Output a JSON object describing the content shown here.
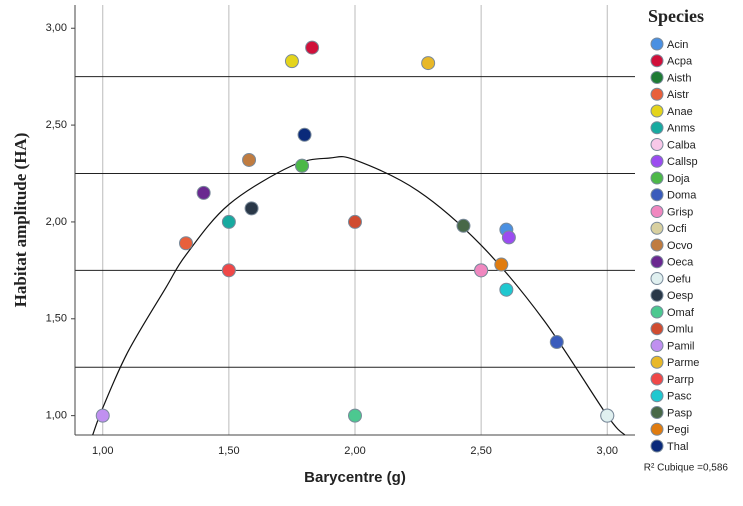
{
  "chart_data": {
    "type": "scatter",
    "x_label": "Barycentre (g)",
    "y_label": "Habitat amplitude (HA)",
    "legend_title": "Species",
    "legend": "right",
    "fit_label": "R² Cubique =0,586",
    "xlim": [
      0.89,
      3.11
    ],
    "ylim": [
      0.9,
      3.12
    ],
    "xticks": [
      {
        "value": 1,
        "label": "1,00"
      },
      {
        "value": 1.5,
        "label": "1,50"
      },
      {
        "value": 2,
        "label": "2,00"
      },
      {
        "value": 2.5,
        "label": "2,50"
      },
      {
        "value": 3,
        "label": "3,00"
      }
    ],
    "yticks": [
      {
        "value": 1,
        "label": "1,00"
      },
      {
        "value": 1.5,
        "label": "1,50"
      },
      {
        "value": 2,
        "label": "2,00"
      },
      {
        "value": 2.5,
        "label": "2,50"
      },
      {
        "value": 3,
        "label": "3,00"
      }
    ],
    "grid": "x",
    "hlines": [
      2.75,
      2.25,
      1.75,
      1.25
    ],
    "fit": {
      "x": [
        0.96,
        1.0,
        1.1,
        1.25,
        1.33,
        1.5,
        1.75,
        1.9,
        2.0,
        2.25,
        2.5,
        2.75,
        3.0,
        3.07
      ],
      "y": [
        0.9,
        1.04,
        1.33,
        1.66,
        1.83,
        2.09,
        2.29,
        2.33,
        2.32,
        2.16,
        1.88,
        1.49,
        1.0,
        0.9
      ]
    },
    "series": [
      {
        "name": "Acin",
        "color": "#4a90e2",
        "x": [
          2.6
        ],
        "values": [
          1.96
        ]
      },
      {
        "name": "Acpa",
        "color": "#d0103a",
        "x": [
          1.83
        ],
        "values": [
          2.9
        ]
      },
      {
        "name": "Aisth",
        "color": "#1e7b34",
        "x": [
          1.79
        ],
        "values": [
          2.29
        ]
      },
      {
        "name": "Aistr",
        "color": "#e8603c",
        "x": [
          1.33
        ],
        "values": [
          1.89
        ]
      },
      {
        "name": "Anae",
        "color": "#e4d41c",
        "x": [
          1.75
        ],
        "values": [
          2.83
        ]
      },
      {
        "name": "Anms",
        "color": "#17aaa0",
        "x": [
          1.5
        ],
        "values": [
          2.0
        ]
      },
      {
        "name": "Calba",
        "color": "#f8c8e8",
        "x": [
          2.5
        ],
        "values": [
          1.75
        ]
      },
      {
        "name": "Callsp",
        "color": "#9b4cf0",
        "x": [
          2.61
        ],
        "values": [
          1.92
        ]
      },
      {
        "name": "Doja",
        "color": "#4cb848",
        "x": [
          1.79
        ],
        "values": [
          2.29
        ]
      },
      {
        "name": "Doma",
        "color": "#3a5cbc",
        "x": [
          2.8
        ],
        "values": [
          1.38
        ]
      },
      {
        "name": "Grisp",
        "color": "#f088c0",
        "x": [
          2.5
        ],
        "values": [
          1.75
        ]
      },
      {
        "name": "Ocfi",
        "color": "#d8d0a0",
        "x": [
          3.0
        ],
        "values": [
          1.0
        ]
      },
      {
        "name": "Ocvo",
        "color": "#c07c40",
        "x": [
          1.58
        ],
        "values": [
          2.32
        ]
      },
      {
        "name": "Oeca",
        "color": "#6a2890",
        "x": [
          1.4
        ],
        "values": [
          2.15
        ]
      },
      {
        "name": "Oefu",
        "color": "#e0f0f0",
        "x": [
          3.0
        ],
        "values": [
          1.0
        ]
      },
      {
        "name": "Oesp",
        "color": "#2a3848",
        "x": [
          1.59
        ],
        "values": [
          2.07
        ]
      },
      {
        "name": "Omaf",
        "color": "#4cc890",
        "x": [
          2.0
        ],
        "values": [
          1.0
        ]
      },
      {
        "name": "Omlu",
        "color": "#d04c30",
        "x": [
          2.0
        ],
        "values": [
          2.0
        ]
      },
      {
        "name": "Pamil",
        "color": "#c090f0",
        "x": [
          1.0
        ],
        "values": [
          1.0
        ]
      },
      {
        "name": "Parme",
        "color": "#e8b828",
        "x": [
          2.29
        ],
        "values": [
          2.82
        ]
      },
      {
        "name": "Parrp",
        "color": "#f04848",
        "x": [
          1.5
        ],
        "values": [
          1.75
        ]
      },
      {
        "name": "Pasc",
        "color": "#20c8d0",
        "x": [
          2.6
        ],
        "values": [
          1.65
        ]
      },
      {
        "name": "Pasp",
        "color": "#486848",
        "x": [
          2.43
        ],
        "values": [
          1.98
        ]
      },
      {
        "name": "Pegi",
        "color": "#e07c10",
        "x": [
          2.58
        ],
        "values": [
          1.78
        ]
      },
      {
        "name": "Thal",
        "color": "#0a2a7a",
        "x": [
          1.8
        ],
        "values": [
          2.45
        ]
      }
    ]
  }
}
